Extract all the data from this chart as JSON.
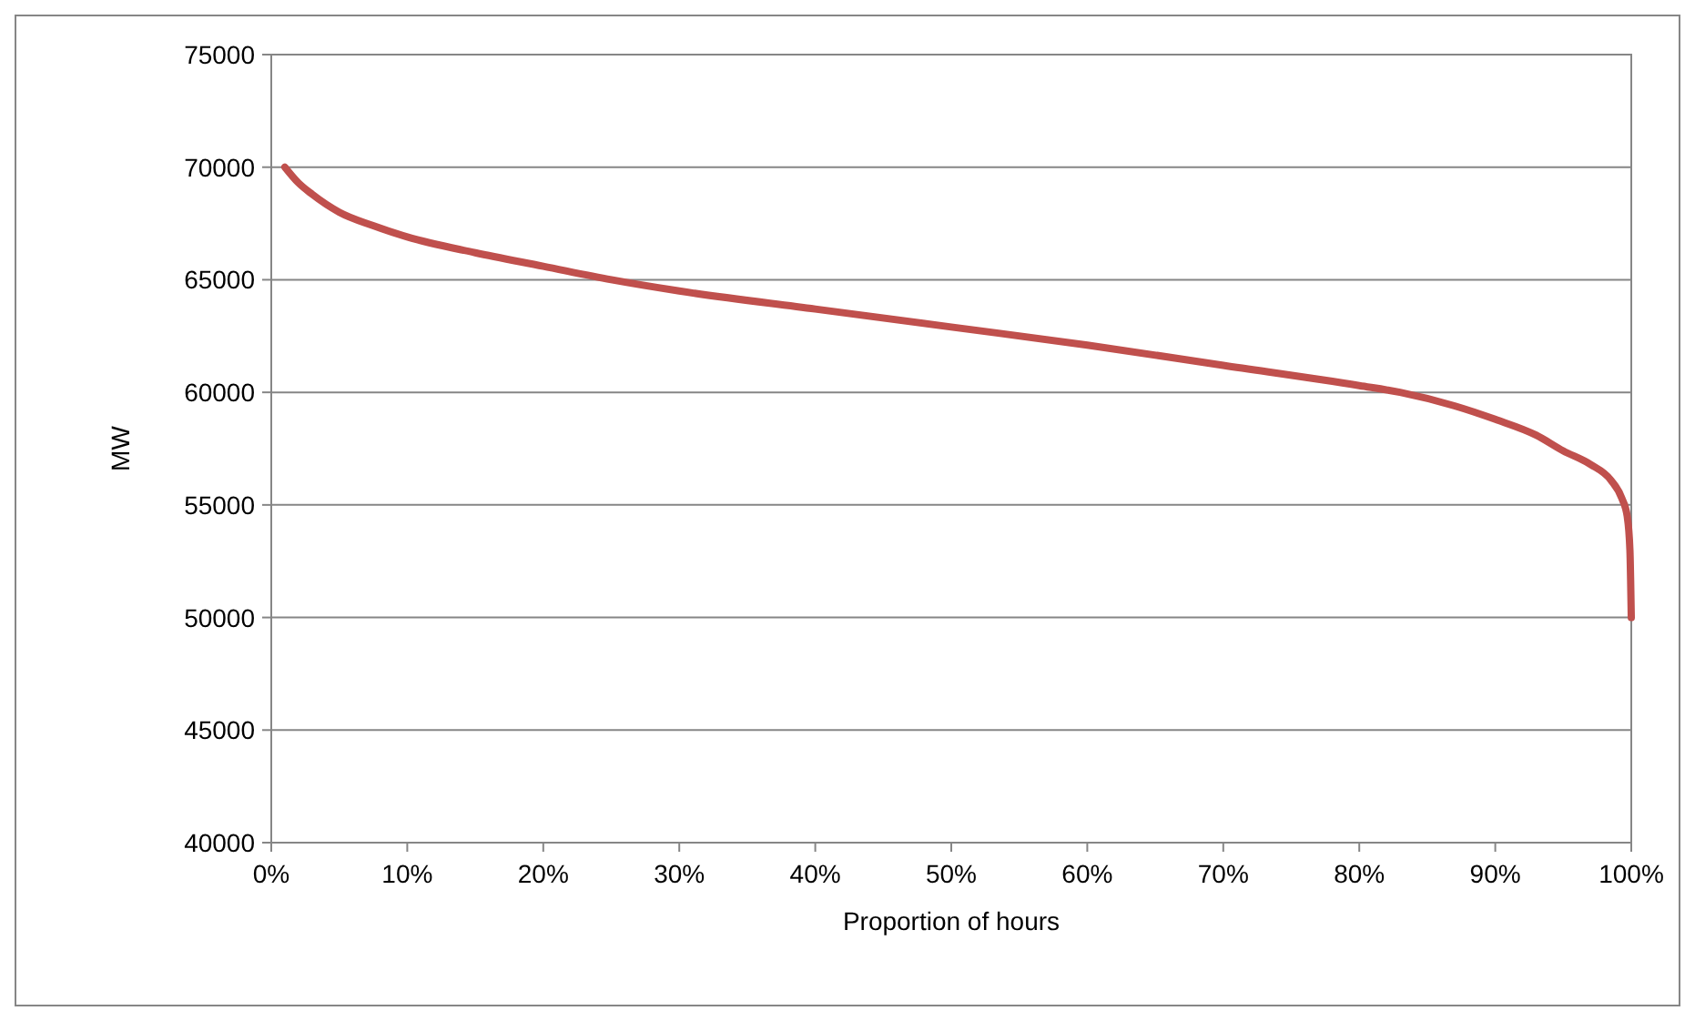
{
  "chart_data": {
    "type": "line",
    "xlabel": "Proportion of hours",
    "ylabel": "MW",
    "x": [
      1,
      2,
      3,
      5,
      7.5,
      10,
      15,
      20,
      25,
      30,
      40,
      50,
      60,
      70,
      80,
      83,
      87,
      90,
      93,
      95,
      97,
      98.5,
      99.3,
      99.7,
      99.9,
      100
    ],
    "series": [
      {
        "color": "#c0504d",
        "values": [
          70000,
          69300,
          68800,
          68000,
          67400,
          66900,
          66200,
          65600,
          65000,
          64500,
          63700,
          62900,
          62100,
          61200,
          60300,
          60000,
          59400,
          58800,
          58100,
          57400,
          56800,
          56100,
          55300,
          54500,
          53000,
          50000
        ]
      }
    ],
    "xlim": [
      0,
      100
    ],
    "xticks": [
      {
        "value": 0,
        "label": "0%"
      },
      {
        "value": 10,
        "label": "10%"
      },
      {
        "value": 20,
        "label": "20%"
      },
      {
        "value": 30,
        "label": "30%"
      },
      {
        "value": 40,
        "label": "40%"
      },
      {
        "value": 50,
        "label": "50%"
      },
      {
        "value": 60,
        "label": "60%"
      },
      {
        "value": 70,
        "label": "70%"
      },
      {
        "value": 80,
        "label": "80%"
      },
      {
        "value": 90,
        "label": "90%"
      },
      {
        "value": 100,
        "label": "100%"
      }
    ],
    "ylim": [
      40000,
      75000
    ],
    "yticks": [
      40000,
      45000,
      50000,
      55000,
      60000,
      65000,
      70000,
      75000
    ],
    "grid": "y",
    "marker": "none",
    "line_style": "solid"
  }
}
